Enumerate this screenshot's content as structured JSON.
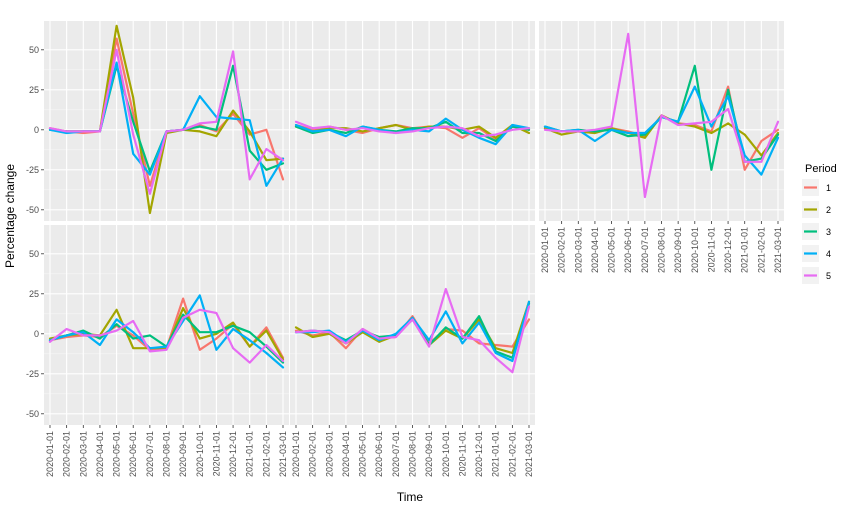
{
  "chart_data": {
    "type": "line",
    "layout": "faceted grid, 3 columns x 2 rows, 5 panels",
    "xlabel": "Time",
    "ylabel": "Percentage change",
    "ylim": [
      -57,
      68
    ],
    "y_ticks": [
      -50,
      -25,
      0,
      25,
      50
    ],
    "grid": true,
    "x": [
      "2020-01-01",
      "2020-02-01",
      "2020-03-01",
      "2020-04-01",
      "2020-05-01",
      "2020-06-01",
      "2020-07-01",
      "2020-08-01",
      "2020-09-01",
      "2020-10-01",
      "2020-11-01",
      "2020-12-01",
      "2021-01-01",
      "2021-02-01",
      "2021-03-01"
    ],
    "legend": {
      "title": "Period",
      "position": "right",
      "entries": [
        {
          "name": "1",
          "color": "#F8766D"
        },
        {
          "name": "2",
          "color": "#A3A500"
        },
        {
          "name": "3",
          "color": "#00BF7D"
        },
        {
          "name": "4",
          "color": "#00B0F6"
        },
        {
          "name": "5",
          "color": "#E76BF3"
        }
      ]
    },
    "panels": [
      {
        "series": [
          {
            "name": "1",
            "values": [
              1,
              -1,
              -2,
              -1,
              57,
              10,
              -35,
              -1,
              0,
              3,
              -1,
              10,
              -3,
              0,
              -31
            ]
          },
          {
            "name": "2",
            "values": [
              0,
              -1,
              -1,
              -1,
              65,
              20,
              -52,
              -2,
              0,
              -1,
              -4,
              12,
              -1,
              -19,
              -18
            ]
          },
          {
            "name": "3",
            "values": [
              0,
              -1,
              -1,
              -1,
              40,
              5,
              -26,
              -1,
              0,
              2,
              0,
              40,
              -13,
              -25,
              -21
            ]
          },
          {
            "name": "4",
            "values": [
              0,
              -2,
              -1,
              -1,
              42,
              -15,
              -28,
              -1,
              0,
              21,
              8,
              7,
              6,
              -35,
              -18
            ]
          },
          {
            "name": "5",
            "values": [
              1,
              -1,
              -1,
              -1,
              50,
              -3,
              -40,
              -1,
              0,
              4,
              5,
              49,
              -31,
              -12,
              -19
            ]
          }
        ]
      },
      {
        "series": [
          {
            "name": "1",
            "values": [
              3,
              0,
              2,
              0,
              -2,
              1,
              3,
              1,
              2,
              1,
              -5,
              1,
              -6,
              2,
              0
            ]
          },
          {
            "name": "2",
            "values": [
              2,
              -1,
              1,
              1,
              -1,
              1,
              3,
              0,
              2,
              2,
              0,
              2,
              -5,
              3,
              -2
            ]
          },
          {
            "name": "3",
            "values": [
              2,
              -2,
              0,
              -2,
              2,
              0,
              -1,
              1,
              1,
              5,
              -2,
              -2,
              -7,
              2,
              0
            ]
          },
          {
            "name": "4",
            "values": [
              3,
              -1,
              0,
              -4,
              2,
              0,
              -2,
              0,
              -1,
              7,
              0,
              -5,
              -9,
              3,
              1
            ]
          },
          {
            "name": "5",
            "values": [
              5,
              1,
              2,
              0,
              1,
              -1,
              -2,
              -1,
              1,
              2,
              1,
              -4,
              -3,
              0,
              1
            ]
          }
        ]
      },
      {
        "series": [
          {
            "name": "1",
            "values": [
              1,
              -1,
              -1,
              -2,
              1,
              -1,
              -4,
              9,
              4,
              3,
              -1,
              27,
              -25,
              -7,
              0
            ]
          },
          {
            "name": "2",
            "values": [
              1,
              -3,
              -1,
              -2,
              1,
              -2,
              -5,
              9,
              4,
              2,
              -2,
              4,
              -3,
              -16,
              -2
            ]
          },
          {
            "name": "3",
            "values": [
              2,
              -1,
              0,
              -1,
              0,
              -4,
              -3,
              8,
              5,
              40,
              -25,
              25,
              -20,
              -18,
              -3
            ]
          },
          {
            "name": "4",
            "values": [
              2,
              -1,
              0,
              -7,
              0,
              -2,
              -2,
              8,
              5,
              27,
              2,
              21,
              -16,
              -28,
              -5
            ]
          },
          {
            "name": "5",
            "values": [
              0,
              -1,
              -1,
              0,
              2,
              60,
              -42,
              9,
              3,
              4,
              5,
              13,
              -20,
              -20,
              5
            ]
          }
        ]
      },
      {
        "series": [
          {
            "name": "1",
            "values": [
              -4,
              -2,
              -1,
              -2,
              5,
              -1,
              -10,
              -9,
              22,
              -10,
              -3,
              6,
              -8,
              4,
              -15
            ]
          },
          {
            "name": "2",
            "values": [
              -3,
              -1,
              0,
              -1,
              15,
              -9,
              -9,
              -9,
              16,
              -3,
              0,
              7,
              -8,
              2,
              -16
            ]
          },
          {
            "name": "3",
            "values": [
              -4,
              -1,
              2,
              -3,
              6,
              -3,
              -1,
              -8,
              12,
              1,
              1,
              5,
              1,
              -8,
              -18
            ]
          },
          {
            "name": "4",
            "values": [
              -4,
              -1,
              1,
              -7,
              9,
              1,
              -9,
              -8,
              8,
              24,
              -10,
              3,
              -4,
              -12,
              -21
            ]
          },
          {
            "name": "5",
            "values": [
              -5,
              3,
              -1,
              -1,
              2,
              8,
              -11,
              -10,
              10,
              15,
              13,
              -9,
              -18,
              -7,
              -17
            ]
          }
        ]
      },
      {
        "series": [
          {
            "name": "1",
            "values": [
              2,
              -1,
              1,
              -9,
              3,
              -3,
              -2,
              11,
              -6,
              3,
              2,
              -6,
              -7,
              -8,
              9
            ]
          },
          {
            "name": "2",
            "values": [
              4,
              -2,
              0,
              -6,
              1,
              -5,
              -1,
              10,
              -7,
              2,
              -3,
              9,
              -9,
              -12,
              20
            ]
          },
          {
            "name": "3",
            "values": [
              1,
              2,
              1,
              -4,
              2,
              -2,
              -1,
              9,
              -7,
              4,
              -3,
              11,
              -11,
              -15,
              19
            ]
          },
          {
            "name": "4",
            "values": [
              1,
              1,
              2,
              -5,
              2,
              -4,
              0,
              10,
              -4,
              14,
              -6,
              7,
              -12,
              -17,
              20
            ]
          },
          {
            "name": "5",
            "values": [
              1,
              2,
              1,
              -6,
              3,
              -3,
              -2,
              9,
              -8,
              28,
              -2,
              -4,
              -15,
              -24,
              17
            ]
          }
        ]
      }
    ]
  }
}
